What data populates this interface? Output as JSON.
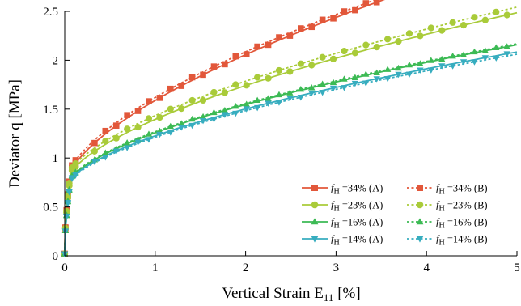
{
  "chart_data": {
    "type": "line",
    "xlabel": "Vertical Strain E",
    "xlabel_sub": "11",
    "xlabel_unit": " [%]",
    "ylabel": "Deviator q [MPa]",
    "xlim": [
      0,
      5
    ],
    "ylim": [
      0,
      2.5
    ],
    "x_ticks": [
      0,
      1,
      2,
      3,
      4,
      5
    ],
    "y_ticks": [
      0,
      0.5,
      1,
      1.5,
      2,
      2.5
    ],
    "x_tick_labels": [
      "0",
      "1",
      "2",
      "3",
      "4",
      "5"
    ],
    "y_tick_labels": [
      "0",
      "0.5",
      "1",
      "1.5",
      "2",
      "2.5"
    ],
    "grid": false,
    "legend": "bottom-right",
    "series": [
      {
        "name": "=34% (A)",
        "fh": "f",
        "sub": "H",
        "color": "#e2573a",
        "marker": "square",
        "dash": false,
        "c": 0.88,
        "b": 1.6,
        "n": 0.615
      },
      {
        "name": "=34% (B)",
        "fh": "f",
        "sub": "H",
        "color": "#e2573a",
        "marker": "square",
        "dash": true,
        "c": 0.91,
        "b": 1.6,
        "n": 0.615
      },
      {
        "name": "=23% (A)",
        "fh": "f",
        "sub": "H",
        "color": "#a9cb39",
        "marker": "circle",
        "dash": false,
        "c": 0.86,
        "b": 1.22,
        "n": 0.6
      },
      {
        "name": "=23% (B)",
        "fh": "f",
        "sub": "H",
        "color": "#a9cb39",
        "marker": "circle",
        "dash": true,
        "c": 0.89,
        "b": 1.24,
        "n": 0.6
      },
      {
        "name": "=16% (A)",
        "fh": "f",
        "sub": "H",
        "color": "#3cba54",
        "marker": "triangle-up",
        "dash": false,
        "c": 0.8,
        "b": 1.06,
        "n": 0.58
      },
      {
        "name": "=16% (B)",
        "fh": "f",
        "sub": "H",
        "color": "#3cba54",
        "marker": "triangle-up",
        "dash": true,
        "c": 0.81,
        "b": 1.06,
        "n": 0.58
      },
      {
        "name": "=14% (A)",
        "fh": "f",
        "sub": "H",
        "color": "#37adbf",
        "marker": "triangle-down",
        "dash": false,
        "c": 0.79,
        "b": 1.01,
        "n": 0.58
      },
      {
        "name": "=14% (B)",
        "fh": "f",
        "sub": "H",
        "color": "#37adbf",
        "marker": "triangle-down",
        "dash": true,
        "c": 0.78,
        "b": 1.0,
        "n": 0.58
      }
    ]
  }
}
